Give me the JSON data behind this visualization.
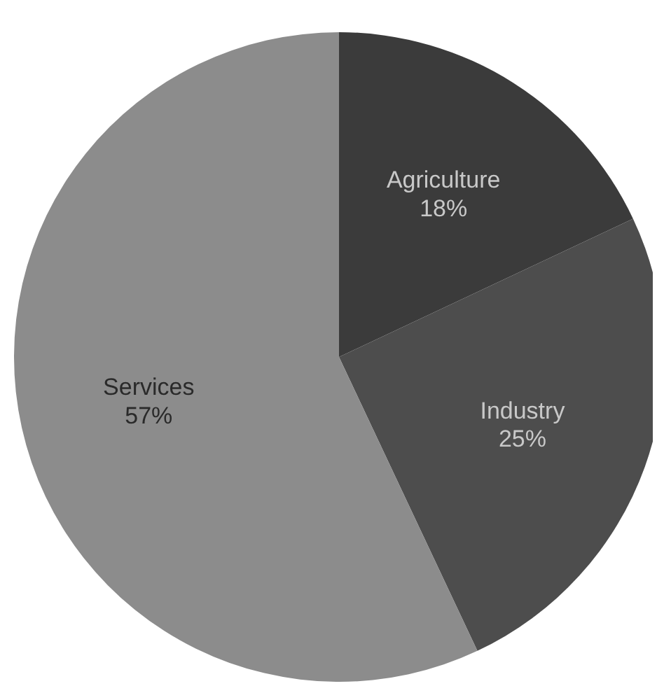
{
  "chart_data": {
    "type": "pie",
    "categories": [
      "Agriculture",
      "Industry",
      "Services"
    ],
    "values": [
      18,
      25,
      57
    ],
    "value_labels": [
      "18%",
      "25%",
      "57%"
    ],
    "colors": [
      "#3b3b3b",
      "#4d4d4d",
      "#8c8c8c"
    ],
    "legend": false
  }
}
